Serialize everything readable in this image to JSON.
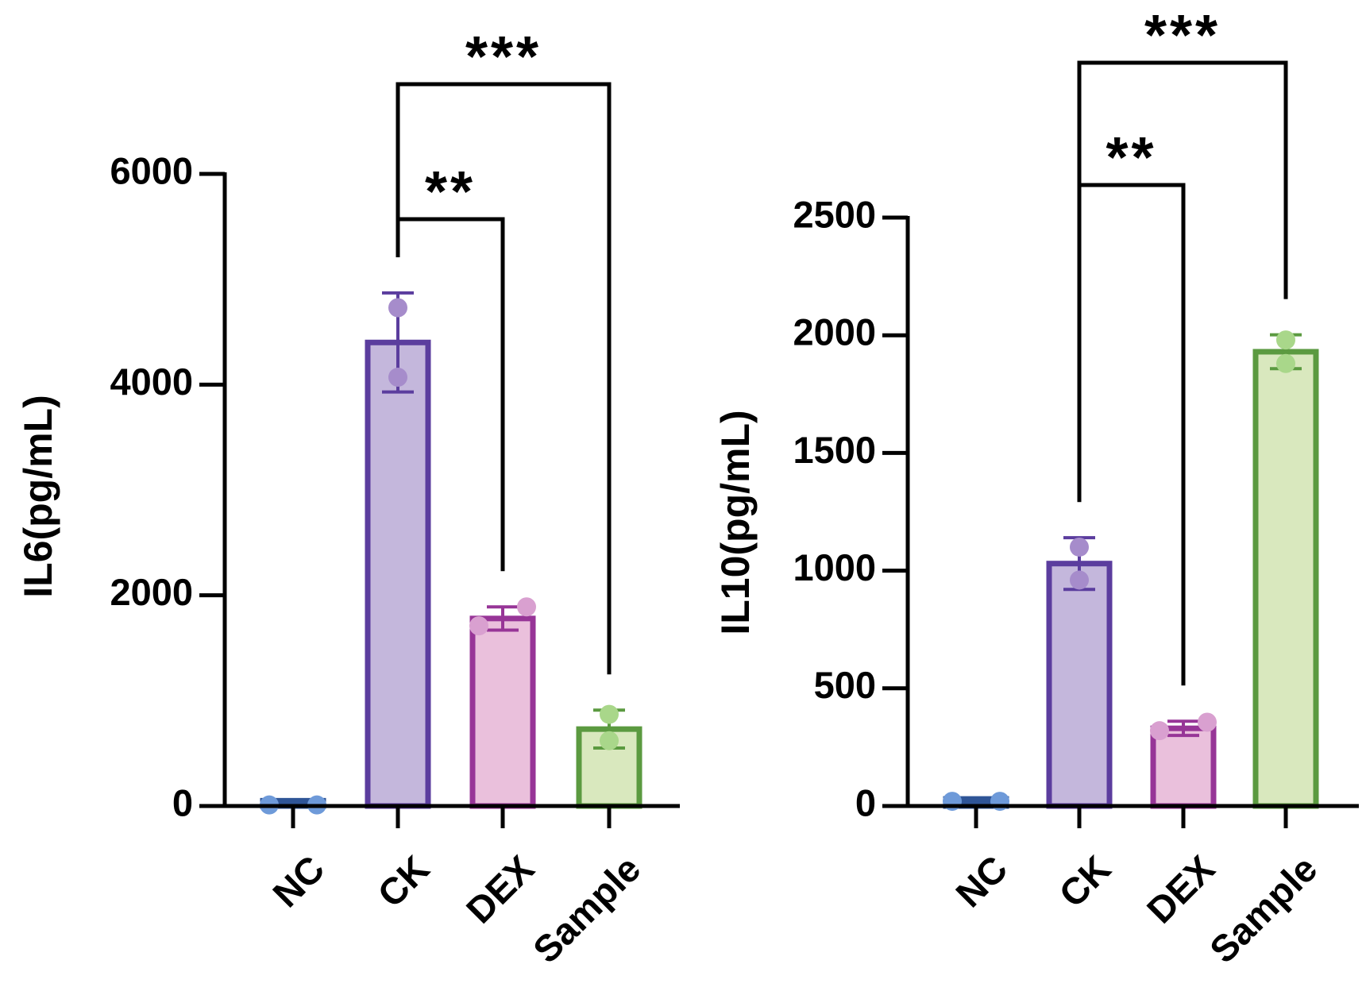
{
  "chart_data": [
    {
      "type": "bar",
      "y_label": "IL6(pg/mL)",
      "categories": [
        "NC",
        "CK",
        "DEX",
        "Sample"
      ],
      "values": [
        50,
        4400,
        1780,
        730
      ],
      "errors": [
        0,
        470,
        110,
        180
      ],
      "points": [
        [
          10,
          10
        ],
        [
          4730,
          4070
        ],
        [
          1710,
          1890
        ],
        [
          870,
          620
        ]
      ],
      "stroke_colors": [
        "#2f5597",
        "#5b3d9e",
        "#973597",
        "#5b9a40"
      ],
      "fill_colors": [
        "#2f5597",
        "#c4b7dc",
        "#eac0dc",
        "#d9e8be"
      ],
      "point_colors": [
        "#6e9ad9",
        "#a68ccb",
        "#d9a0d0",
        "#a9d78a"
      ],
      "ylim": [
        0,
        6000
      ],
      "yticks": [
        0,
        2000,
        4000,
        6000
      ],
      "comparisons": [
        {
          "groups": [
            "CK",
            "DEX"
          ],
          "label": "**"
        },
        {
          "groups": [
            "CK",
            "Sample"
          ],
          "label": "***"
        }
      ]
    },
    {
      "type": "bar",
      "y_label": "IL10(pg/mL)",
      "categories": [
        "NC",
        "CK",
        "DEX",
        "Sample"
      ],
      "values": [
        30,
        1030,
        330,
        1930
      ],
      "errors": [
        0,
        110,
        30,
        72
      ],
      "points": [
        [
          20,
          20
        ],
        [
          1100,
          960
        ],
        [
          320,
          356
        ],
        [
          1980,
          1880
        ]
      ],
      "stroke_colors": [
        "#2f5597",
        "#5b3d9e",
        "#973597",
        "#5b9a40"
      ],
      "fill_colors": [
        "#2f5597",
        "#c4b7dc",
        "#eac0dc",
        "#d9e8be"
      ],
      "point_colors": [
        "#6e9ad9",
        "#a68ccb",
        "#d9a0d0",
        "#a9d78a"
      ],
      "ylim": [
        0,
        2500
      ],
      "yticks": [
        0,
        500,
        1000,
        1500,
        2000,
        2500
      ],
      "comparisons": [
        {
          "groups": [
            "CK",
            "DEX"
          ],
          "label": "**"
        },
        {
          "groups": [
            "CK",
            "Sample"
          ],
          "label": "***"
        }
      ]
    }
  ]
}
